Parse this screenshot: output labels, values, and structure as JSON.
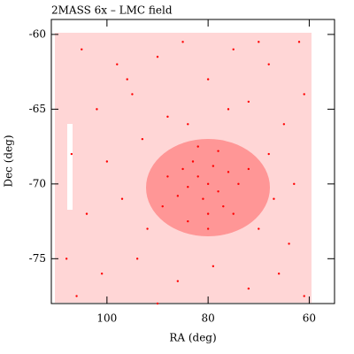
{
  "chart_data": {
    "type": "scatter",
    "title": "2MASS 6x – LMC field",
    "x_label": "RA (deg)",
    "y_label": "Dec (deg)",
    "color": "#ff0000",
    "xlim": [
      111,
      55
    ],
    "ylim": [
      -78,
      -59
    ],
    "xticks": [
      100,
      80,
      60
    ],
    "yticks": [
      -60,
      -65,
      -70,
      -75
    ],
    "x": [
      80,
      82,
      78,
      84,
      76,
      81,
      79,
      85,
      77,
      83,
      80,
      86,
      74,
      82,
      78,
      88,
      72,
      80,
      84,
      75,
      105,
      98,
      90,
      85,
      75,
      68,
      62,
      102,
      95,
      88,
      72,
      65,
      61,
      107,
      100,
      93,
      68,
      63,
      104,
      97,
      92,
      70,
      64,
      108,
      101,
      94,
      86,
      79,
      72,
      66,
      61,
      106,
      90,
      96,
      70,
      80,
      84,
      76,
      89,
      67
    ],
    "y": [
      -70,
      -69.5,
      -70.5,
      -70.2,
      -69.2,
      -71,
      -68.8,
      -69,
      -71.5,
      -68.5,
      -72,
      -70.8,
      -70,
      -67.5,
      -67.8,
      -69.5,
      -69,
      -73,
      -72.5,
      -72,
      -61,
      -62,
      -61.5,
      -60.5,
      -61,
      -62,
      -60.5,
      -65,
      -64,
      -65.5,
      -64.5,
      -66,
      -64,
      -68,
      -68.5,
      -67,
      -68,
      -70,
      -72,
      -71,
      -73,
      -73,
      -74,
      -75,
      -76,
      -75,
      -76.5,
      -75.5,
      -77,
      -76,
      -77.5,
      -77.5,
      -78,
      -63,
      -60.5,
      -63,
      -66,
      -65,
      -71.5,
      -71
    ]
  }
}
